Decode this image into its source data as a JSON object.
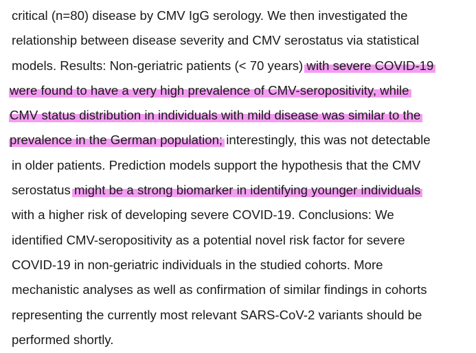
{
  "document": {
    "lines": [
      [
        {
          "text": "critical (n=80) disease by CMV IgG serology. We then investigated the",
          "highlight": false
        }
      ],
      [
        {
          "text": "relationship between disease severity and CMV serostatus via statistical",
          "highlight": false
        }
      ],
      [
        {
          "text": "models. Results: Non-geriatric patients (< 70 years) ",
          "highlight": false
        },
        {
          "text": "with severe COVID-19",
          "highlight": true
        }
      ],
      [
        {
          "text": "were found to have a very high prevalence of CMV-seropositivity, while",
          "highlight": true
        }
      ],
      [
        {
          "text": "CMV status distribution in individuals with mild disease was similar to the",
          "highlight": true
        }
      ],
      [
        {
          "text": "prevalence in the German population;",
          "highlight": true
        },
        {
          "text": " interestingly, this was not detectable",
          "highlight": false
        }
      ],
      [
        {
          "text": "in older patients. Prediction models support the hypothesis that the CMV",
          "highlight": false
        }
      ],
      [
        {
          "text": "serostatus ",
          "highlight": false
        },
        {
          "text": "might be a strong biomarker in identifying younger individuals",
          "highlight": true
        }
      ],
      [
        {
          "text": "with a higher risk of developing severe COVID-19. Conclusions: We",
          "highlight": false
        }
      ],
      [
        {
          "text": "identified CMV-seropositivity as a potential novel risk factor for severe",
          "highlight": false
        }
      ],
      [
        {
          "text": "COVID-19 in non-geriatric individuals in the studied cohorts. More",
          "highlight": false
        }
      ],
      [
        {
          "text": "mechanistic analyses as well as confirmation of similar findings in cohorts",
          "highlight": false
        }
      ],
      [
        {
          "text": "representing the currently most relevant SARS-CoV-2 variants should be",
          "highlight": false
        }
      ],
      [
        {
          "text": "performed shortly.",
          "highlight": false
        }
      ]
    ],
    "highlight_color": "#f49cf2"
  }
}
